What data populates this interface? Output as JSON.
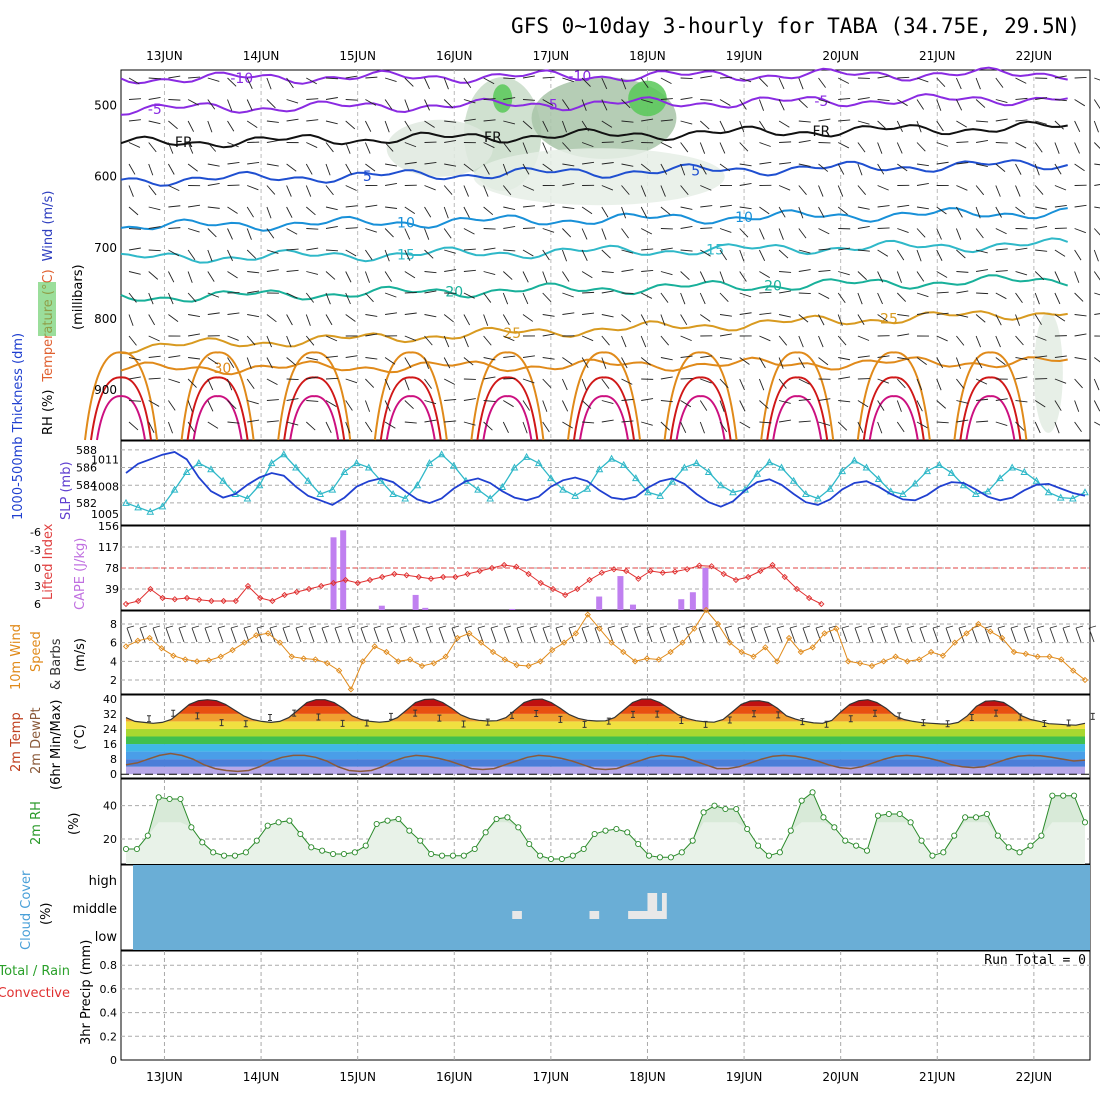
{
  "title": "GFS 0~10day 3-hourly for TABA (34.75E, 29.5N)",
  "days": [
    "13JUN",
    "14JUN",
    "15JUN",
    "16JUN",
    "17JUN",
    "18JUN",
    "19JUN",
    "20JUN",
    "21JUN",
    "22JUN"
  ],
  "colors": {
    "purple": "#8a2be2",
    "blue": "#1f4fd0",
    "cyan": "#2fb8c8",
    "teal": "#18b09a",
    "orange": "#e08a1a",
    "red": "#d01818",
    "rhgreen": "#58c858",
    "cloud": "#6aaed6",
    "cape": "#c080f0",
    "li": "#e03030"
  },
  "panels": {
    "upper": {
      "ylabel_parts": [
        "RH (%)",
        "Temperature (°C)",
        "Wind (m/s)"
      ],
      "axis_label": "(millibars)",
      "yticks": [
        "500",
        "600",
        "700",
        "800",
        "900"
      ],
      "contour_labels": [
        "-10",
        "-5",
        "FR",
        "5",
        "10",
        "15",
        "20",
        "25",
        "30"
      ]
    },
    "thickness": {
      "left_label": "1000-500mb Thickness (dm)",
      "right_label": "SLP (mb)",
      "left_ticks": [
        "588",
        "586",
        "584",
        "582"
      ],
      "right_ticks": [
        "1011",
        "1008",
        "1005"
      ]
    },
    "cape": {
      "left_label": "Lifted Index",
      "right_label": "CAPE (J/kg)",
      "left_ticks": [
        "-6",
        "-3",
        "0",
        "3",
        "6"
      ],
      "right_ticks": [
        "156",
        "117",
        "78",
        "39"
      ]
    },
    "wind10": {
      "label_a": "10m Wind",
      "label_b": "Speed",
      "label_c": "& Barbs",
      "unit": "(m/s)",
      "ticks": [
        "8",
        "6",
        "4",
        "2"
      ]
    },
    "temp2m": {
      "label_a": "2m Temp",
      "label_b": "2m DewPt",
      "label_c": "(6hr Min/Max)",
      "unit": "(°C)",
      "ticks": [
        "40",
        "32",
        "24",
        "16",
        "8",
        "0"
      ]
    },
    "rh2m": {
      "label": "2m RH",
      "unit": "(%)",
      "ticks": [
        "40",
        "20"
      ]
    },
    "cloud": {
      "label": "Cloud Cover",
      "unit": "(%)",
      "levels": [
        "high",
        "middle",
        "low"
      ]
    },
    "precip": {
      "label_a": "Total / Rain",
      "label_b": "Convective",
      "label_c": "3hr Precip (mm)",
      "ticks": [
        "0.8",
        "0.6",
        "0.4",
        "0.2",
        "0"
      ],
      "run_total": "Run Total = 0"
    }
  },
  "chart_data": [
    {
      "type": "line",
      "title": "1000-500mb Thickness (dm) / SLP (mb)",
      "series": [
        {
          "name": "1000-500mb Thickness (dm)",
          "values": [
            582.0,
            581.5,
            581.0,
            581.6,
            583.5,
            585.5,
            586.5,
            585.8,
            584.5,
            583.0,
            582.5,
            584.0,
            586.5,
            587.5,
            586.0,
            584.5,
            583.0,
            583.5,
            585.5,
            586.5,
            586.0,
            584.5,
            583.0,
            582.5,
            584.0,
            586.5,
            587.5,
            586.2,
            584.5,
            583.5,
            582.5,
            583.8,
            586.0,
            587.2,
            586.5,
            584.8,
            583.5,
            582.8,
            583.6,
            585.8,
            587.0,
            586.3,
            584.8,
            583.2,
            582.8,
            584.4,
            586.0,
            586.5,
            585.5,
            584.0,
            583.2,
            583.5,
            585.3,
            586.6,
            586.0,
            584.5,
            583.0,
            582.5,
            583.6,
            585.6,
            586.8,
            586.0,
            584.7,
            583.3,
            583.0,
            584.2,
            585.6,
            586.3,
            585.4,
            584.0,
            583.0,
            583.3,
            584.8,
            586.0,
            585.5,
            584.5,
            583.2,
            582.6,
            582.5,
            583.2
          ]
        },
        {
          "name": "SLP (mb)",
          "values": [
            1009.5,
            1010.5,
            1011.0,
            1011.5,
            1011.8,
            1011.0,
            1009.0,
            1007.5,
            1006.8,
            1007.2,
            1008.2,
            1009.0,
            1009.5,
            1009.2,
            1008.0,
            1007.0,
            1006.5,
            1006.0,
            1006.8,
            1008.0,
            1008.6,
            1008.9,
            1008.5,
            1007.5,
            1006.6,
            1006.2,
            1006.7,
            1007.8,
            1008.6,
            1008.9,
            1008.4,
            1007.5,
            1006.8,
            1006.5,
            1006.9,
            1008.0,
            1008.7,
            1009.0,
            1008.6,
            1007.6,
            1006.8,
            1006.6,
            1006.9,
            1007.9,
            1008.6,
            1008.9,
            1008.3,
            1007.2,
            1006.3,
            1005.8,
            1006.4,
            1007.6,
            1008.5,
            1008.8,
            1008.2,
            1007.2,
            1006.3,
            1006.0,
            1006.6,
            1007.7,
            1008.4,
            1008.6,
            1008.0,
            1007.2,
            1006.6,
            1006.5,
            1007.1,
            1008.0,
            1008.5,
            1008.4,
            1007.7,
            1006.9,
            1006.5,
            1006.8,
            1007.6,
            1008.2,
            1008.3,
            1007.8,
            1007.3,
            1007.0
          ]
        }
      ]
    },
    {
      "type": "bar",
      "title": "Lifted Index / CAPE (J/kg)",
      "series": [
        {
          "name": "Lifted Index",
          "values": [
            6.0,
            5.5,
            3.5,
            5.0,
            5.2,
            5.0,
            5.3,
            5.5,
            5.5,
            5.5,
            3.0,
            5.0,
            5.5,
            4.5,
            4.0,
            3.5,
            3.0,
            2.5,
            2.0,
            2.5,
            2.0,
            1.5,
            1.0,
            1.2,
            1.5,
            1.8,
            1.5,
            1.5,
            1.0,
            0.5,
            0.0,
            -0.5,
            -0.2,
            1.0,
            2.5,
            3.5,
            4.5,
            3.5,
            2.0,
            0.8,
            0.2,
            0.5,
            1.8,
            0.5,
            0.8,
            0.6,
            0.2,
            -0.4,
            -0.3,
            1.0,
            2.0,
            1.5,
            0.5,
            -0.5,
            1.5,
            3.5,
            5.0,
            6.0
          ]
        },
        {
          "name": "CAPE (J/kg)",
          "values": [
            0,
            0,
            0,
            0,
            0,
            0,
            0,
            0,
            0,
            0,
            0,
            0,
            0,
            0,
            0,
            0,
            0,
            0,
            0,
            0,
            0,
            0,
            0,
            0,
            0,
            0,
            0,
            0,
            0,
            0,
            0,
            0,
            0,
            0,
            0,
            0,
            0,
            0,
            0,
            0,
            0,
            0,
            0,
            0,
            0,
            0,
            0,
            0,
            0,
            0,
            0,
            0,
            0,
            0,
            0,
            0,
            0,
            0,
            0,
            0,
            0,
            0,
            0,
            0,
            0,
            0,
            0,
            0,
            0,
            0,
            0,
            0,
            0,
            0,
            0,
            0,
            0,
            0,
            0,
            0
          ],
          "bars": [
            [
              14.75,
              135
            ],
            [
              14.85,
              148
            ],
            [
              15.25,
              8
            ],
            [
              15.6,
              28
            ],
            [
              15.7,
              4
            ],
            [
              16.6,
              2
            ],
            [
              17.5,
              25
            ],
            [
              17.72,
              63
            ],
            [
              17.85,
              10
            ],
            [
              18.35,
              20
            ],
            [
              18.47,
              33
            ],
            [
              18.6,
              78
            ]
          ]
        }
      ]
    },
    {
      "type": "line",
      "title": "10m Wind Speed (m/s)",
      "series": [
        {
          "name": "10m Wind Speed",
          "values": [
            5.6,
            6.2,
            6.5,
            5.4,
            4.6,
            4.2,
            4.0,
            4.1,
            4.5,
            5.2,
            6.0,
            6.8,
            7.0,
            6.0,
            4.5,
            4.3,
            4.2,
            3.8,
            3.0,
            1.0,
            4.0,
            5.6,
            5.0,
            4.0,
            4.2,
            3.5,
            3.8,
            4.5,
            6.5,
            7.0,
            6.0,
            5.0,
            4.2,
            3.6,
            3.5,
            4.0,
            5.2,
            6.0,
            7.0,
            9.0,
            7.5,
            6.0,
            5.0,
            4.0,
            4.3,
            4.2,
            5.0,
            6.0,
            7.5,
            9.5,
            8.0,
            6.0,
            5.0,
            4.5,
            5.5,
            4.0,
            6.5,
            5.0,
            5.5,
            7.0,
            7.5,
            4.0,
            3.8,
            3.5,
            4.0,
            4.5,
            4.0,
            4.2,
            5.0,
            4.6,
            6.0,
            7.0,
            8.0,
            7.2,
            6.5,
            5.0,
            4.8,
            4.5,
            4.5,
            4.2,
            3.0,
            2.0
          ]
        }
      ]
    },
    {
      "type": "area",
      "title": "2m Temp / 2m DewPt (°C)",
      "series": [
        {
          "name": "2m Temp",
          "values": [
            30,
            28,
            27.5,
            27,
            27.5,
            29,
            33,
            37,
            39,
            39.5,
            39.0,
            37,
            34,
            31,
            29,
            28,
            27.5,
            28,
            30,
            34,
            38,
            39.5,
            39.5,
            38,
            35,
            31,
            29,
            28,
            27.6,
            28,
            30,
            34,
            38,
            39.6,
            39.8,
            38,
            35,
            31.5,
            29.5,
            28.6,
            28.2,
            28.4,
            30,
            34,
            38,
            39.6,
            39.8,
            38,
            35,
            31.6,
            29.6,
            28.6,
            28.2,
            28.3,
            30,
            34,
            38,
            39.8,
            39.8,
            38,
            35,
            31.6,
            29.6,
            28.4,
            27.8,
            27.6,
            29,
            33,
            37,
            38.8,
            39,
            38,
            35,
            31,
            29.2,
            28,
            27.2,
            27,
            28.5,
            33,
            37,
            39,
            39.5,
            38,
            35,
            31,
            29,
            28,
            27.3,
            27,
            26.7,
            26.5,
            27.5,
            31,
            36,
            38.7,
            39,
            38,
            35,
            31,
            29,
            28,
            26.8,
            26.5,
            26.2,
            26,
            27
          ]
        },
        {
          "name": "2m DewPt",
          "values": [
            5,
            6,
            8,
            10,
            11,
            10,
            8,
            5,
            3,
            2,
            1.5,
            2,
            4,
            7,
            9,
            10,
            10,
            9,
            7,
            4,
            2,
            1.5,
            2,
            4,
            7,
            9,
            10,
            9.5,
            8.5,
            7,
            5,
            3,
            2.5,
            3,
            5,
            7,
            9,
            10,
            9.5,
            8.5,
            7,
            5,
            3,
            2.5,
            3,
            5,
            7,
            9,
            10,
            9.5,
            9,
            7,
            5,
            3,
            3,
            4,
            6,
            8,
            9.5,
            10,
            9.5,
            8.5,
            7,
            5,
            3.5,
            3,
            4,
            6,
            8,
            9.5,
            10,
            9.5,
            8.5,
            7,
            5,
            4,
            3.5,
            4,
            6,
            8,
            9.5,
            10,
            9.8,
            9,
            8,
            7,
            7.5
          ]
        }
      ]
    },
    {
      "type": "area",
      "title": "2m RH (%)",
      "series": [
        {
          "name": "2m RH",
          "values": [
            14,
            14,
            22,
            45,
            44,
            44,
            27,
            18,
            12,
            10,
            10,
            12,
            19,
            28,
            30,
            31,
            23,
            15,
            13,
            11,
            11,
            12,
            16,
            29,
            31,
            32,
            25,
            19,
            11,
            10,
            10,
            10,
            14,
            24,
            32,
            33,
            27,
            17,
            10,
            8,
            8,
            10,
            14,
            23,
            25,
            26,
            24,
            17,
            10,
            9,
            9,
            12,
            19,
            36,
            40,
            38,
            38,
            26,
            16,
            10,
            12,
            25,
            43,
            48,
            33,
            27,
            19,
            16,
            13,
            34,
            35,
            35,
            30,
            19,
            10,
            12,
            22,
            33,
            33,
            35,
            22,
            15,
            12,
            16,
            22,
            46,
            46,
            46,
            30
          ]
        }
      ]
    },
    {
      "type": "heatmap",
      "title": "Cloud Cover (%)",
      "series": [
        {
          "name": "middle",
          "values": [
            [
              16.6,
              16.7
            ],
            [
              17.4,
              17.5
            ],
            [
              17.8,
              18.2
            ]
          ]
        },
        {
          "name": "high",
          "values": [
            [
              18.0,
              18.1
            ],
            [
              18.15,
              18.2
            ]
          ]
        }
      ]
    },
    {
      "type": "bar",
      "title": "3hr Precip (mm)",
      "ylim": [
        0,
        0.9
      ],
      "series": [
        {
          "name": "Total / Rain",
          "values": []
        },
        {
          "name": "Convective",
          "values": []
        }
      ]
    }
  ]
}
